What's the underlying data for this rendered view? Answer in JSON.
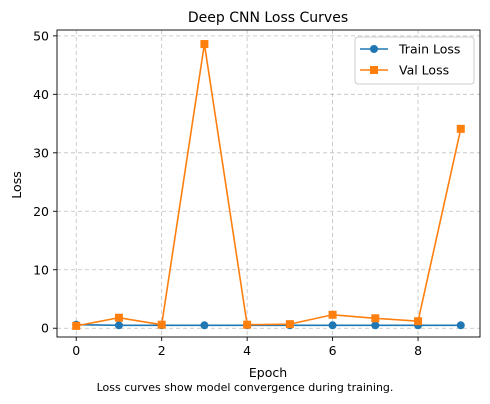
{
  "chart_data": {
    "type": "line",
    "title": "Deep CNN Loss Curves",
    "xlabel": "Epoch",
    "ylabel": "Loss",
    "x": [
      0,
      1,
      2,
      3,
      4,
      5,
      6,
      7,
      8,
      9
    ],
    "xlim": [
      -0.45,
      9.45
    ],
    "ylim": [
      -1.5,
      51
    ],
    "xticks": [
      0,
      2,
      4,
      6,
      8
    ],
    "yticks": [
      0,
      10,
      20,
      30,
      40,
      50
    ],
    "grid": true,
    "legend_position": "top-right",
    "series": [
      {
        "name": "Train Loss",
        "color": "#1f77b4",
        "marker": "circle",
        "values": [
          0.6,
          0.5,
          0.5,
          0.5,
          0.5,
          0.5,
          0.5,
          0.5,
          0.5,
          0.5
        ]
      },
      {
        "name": "Val Loss",
        "color": "#ff7f0e",
        "marker": "square",
        "values": [
          0.4,
          1.8,
          0.6,
          48.6,
          0.6,
          0.7,
          2.3,
          1.7,
          1.2,
          34.1
        ]
      }
    ],
    "caption": "Loss curves show model convergence during training."
  }
}
